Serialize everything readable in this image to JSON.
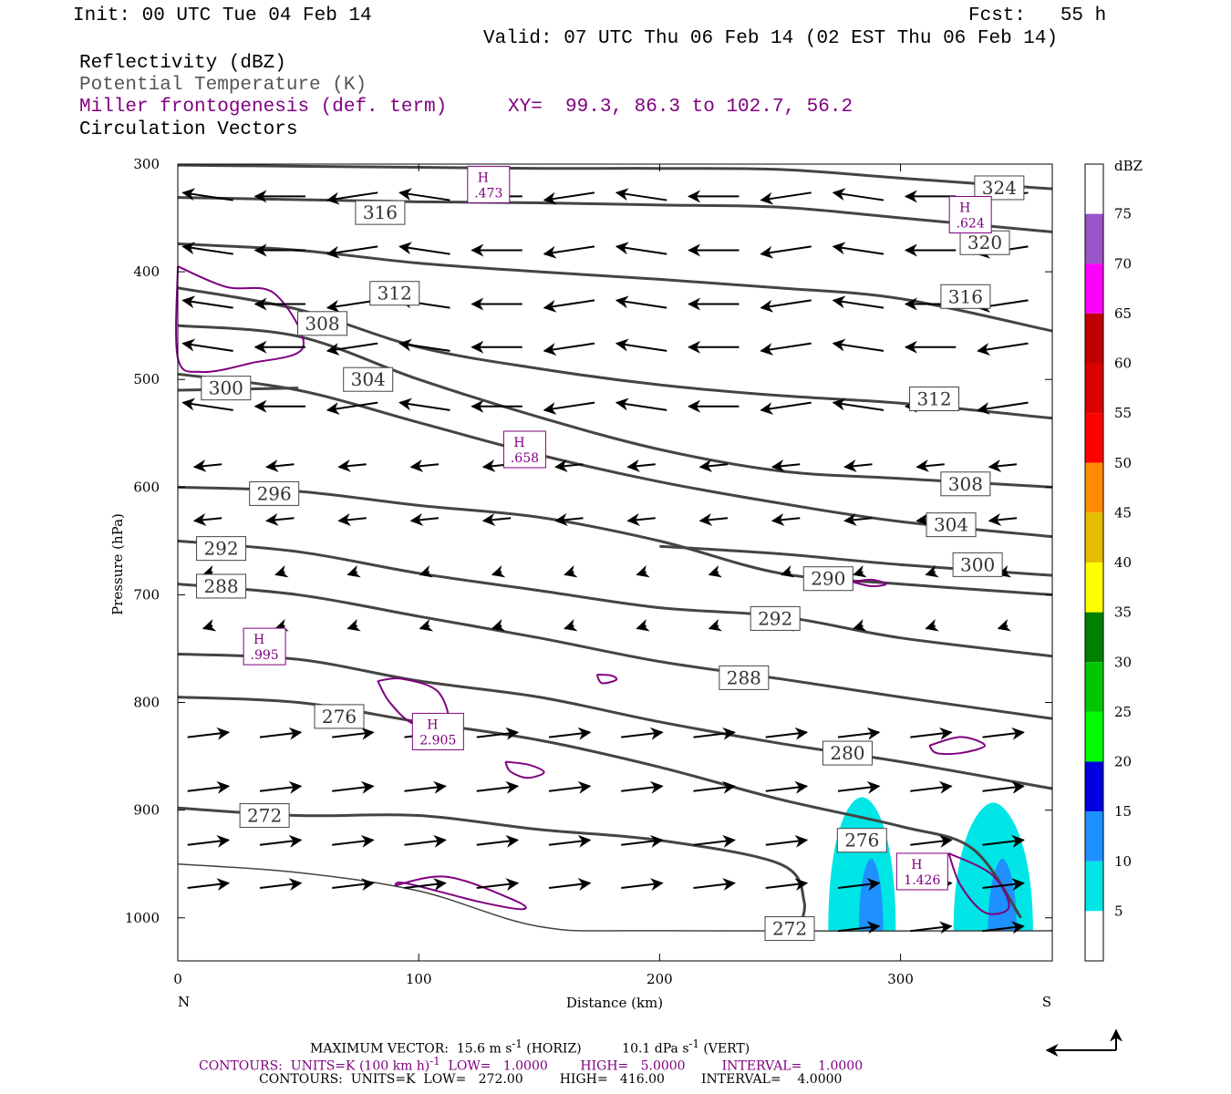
{
  "header": {
    "init": "Init: 00 UTC Tue 04 Feb 14",
    "fcst": "Fcst:   55 h",
    "valid": "Valid: 07 UTC Thu 06 Feb 14 (02 EST Thu 06 Feb 14)",
    "field1": "Reflectivity (dBZ)",
    "field2": "Potential Temperature (K)",
    "field3": "Miller frontogenesis (def. term)",
    "xy": "XY=  99.3, 86.3 to 102.7, 56.2",
    "field4": "Circulation Vectors"
  },
  "footer": {
    "line1a": "MAXIMUM VECTOR:  15.6 m s",
    "line1a_sup": "-1",
    "line1b": "(HORIZ)",
    "line1c": "10.1 dPa s",
    "line1c_sup": "-1",
    "line1d": "(VERT)",
    "line2a": "CONTOURS:  UNITS=K (100 km h)",
    "line2a_sup": "-1",
    "line2b": "LOW=   1.0000",
    "line2c": "HIGH=   5.0000",
    "line2d": "INTERVAL=    1.0000",
    "line3a": "CONTOURS:  UNITS=K  LOW=   272.00",
    "line3b": "HIGH=   416.00",
    "line3c": "INTERVAL=    4.0000"
  },
  "colors": {
    "theta": "#444444",
    "frontogenesis": "#800080",
    "vector": "#000000"
  },
  "chart_data": {
    "type": "cross-section",
    "xlabel": "Distance (km)",
    "ylabel": "Pressure (hPa)",
    "xlim": [
      0,
      363
    ],
    "ylim": [
      1040,
      300
    ],
    "x_ticks": [
      0,
      100,
      200,
      300
    ],
    "y_ticks": [
      300,
      400,
      500,
      600,
      700,
      800,
      900,
      1000
    ],
    "x_end_labels": {
      "left": "N",
      "right": "S"
    },
    "colorbar": {
      "title": "dBZ",
      "levels": [
        75,
        70,
        65,
        60,
        55,
        50,
        45,
        40,
        35,
        30,
        25,
        20,
        15,
        10,
        5
      ],
      "colors": [
        "#ffffff",
        "#9b55c8",
        "#ff00ff",
        "#c00000",
        "#dc0000",
        "#ff0000",
        "#ff8c00",
        "#e6be00",
        "#ffff00",
        "#008000",
        "#00c800",
        "#00ff00",
        "#0000e0",
        "#1e90ff",
        "#00e5e5",
        "#ffffff"
      ]
    },
    "theta_contours": [
      {
        "label": "324",
        "points": [
          [
            0,
            301
          ],
          [
            50,
            302
          ],
          [
            100,
            303
          ],
          [
            150,
            304
          ],
          [
            200,
            304
          ],
          [
            250,
            305
          ],
          [
            300,
            313
          ],
          [
            363,
            323
          ]
        ],
        "label_pos": [
          341,
          322
        ]
      },
      {
        "label": "320",
        "points": [
          [
            0,
            331
          ],
          [
            50,
            333
          ],
          [
            100,
            335
          ],
          [
            150,
            336
          ],
          [
            200,
            338
          ],
          [
            250,
            340
          ],
          [
            300,
            350
          ],
          [
            363,
            363
          ]
        ],
        "label_pos": [
          335,
          373
        ]
      },
      {
        "label": "316",
        "points": [
          [
            0,
            374
          ],
          [
            50,
            380
          ],
          [
            100,
            392
          ],
          [
            150,
            400
          ],
          [
            200,
            407
          ],
          [
            250,
            415
          ],
          [
            300,
            425
          ],
          [
            363,
            455
          ]
        ],
        "label_pos": [
          84,
          345
        ]
      },
      {
        "label": "316",
        "points": [],
        "label_pos": [
          327,
          423
        ]
      },
      {
        "label": "312",
        "points": [
          [
            0,
            415
          ],
          [
            50,
            435
          ],
          [
            100,
            470
          ],
          [
            150,
            490
          ],
          [
            200,
            505
          ],
          [
            250,
            515
          ],
          [
            300,
            522
          ],
          [
            363,
            536
          ]
        ],
        "label_pos": [
          90,
          420
        ]
      },
      {
        "label": "312",
        "points": [],
        "label_pos": [
          314,
          518
        ]
      },
      {
        "label": "308",
        "points": [
          [
            0,
            450
          ],
          [
            50,
            460
          ],
          [
            100,
            500
          ],
          [
            150,
            535
          ],
          [
            200,
            565
          ],
          [
            250,
            585
          ],
          [
            300,
            592
          ],
          [
            363,
            600
          ]
        ],
        "label_pos": [
          60,
          448
        ]
      },
      {
        "label": "308",
        "points": [],
        "label_pos": [
          327,
          597
        ]
      },
      {
        "label": "304",
        "points": [
          [
            0,
            495
          ],
          [
            50,
            510
          ],
          [
            100,
            540
          ],
          [
            150,
            570
          ],
          [
            200,
            595
          ],
          [
            250,
            615
          ],
          [
            300,
            632
          ],
          [
            363,
            646
          ]
        ],
        "label_pos": [
          79,
          500
        ]
      },
      {
        "label": "304",
        "points": [],
        "label_pos": [
          321,
          635
        ]
      },
      {
        "label": "300",
        "points": [
          [
            0,
            510
          ],
          [
            50,
            508
          ]
        ],
        "label_pos": [
          20,
          508
        ]
      },
      {
        "label": "300",
        "points": [
          [
            200,
            655
          ],
          [
            250,
            662
          ],
          [
            300,
            672
          ],
          [
            363,
            682
          ]
        ],
        "label_pos": [
          332,
          672
        ]
      },
      {
        "label": "296",
        "points": [
          [
            0,
            600
          ],
          [
            50,
            604
          ],
          [
            100,
            617
          ],
          [
            150,
            628
          ],
          [
            200,
            650
          ],
          [
            250,
            680
          ],
          [
            300,
            690
          ],
          [
            363,
            700
          ]
        ],
        "label_pos": [
          40,
          606
        ]
      },
      {
        "label": "292",
        "points": [
          [
            0,
            650
          ],
          [
            50,
            660
          ],
          [
            100,
            680
          ],
          [
            150,
            696
          ],
          [
            200,
            712
          ],
          [
            250,
            720
          ],
          [
            300,
            740
          ],
          [
            363,
            757
          ]
        ],
        "label_pos": [
          18,
          657
        ]
      },
      {
        "label": "292",
        "points": [],
        "label_pos": [
          248,
          722
        ]
      },
      {
        "label": "290",
        "points": [],
        "label_pos": [
          270,
          685
        ]
      },
      {
        "label": "288",
        "points": [
          [
            0,
            690
          ],
          [
            50,
            700
          ],
          [
            100,
            720
          ],
          [
            150,
            740
          ],
          [
            200,
            762
          ],
          [
            250,
            778
          ],
          [
            300,
            795
          ],
          [
            363,
            815
          ]
        ],
        "label_pos": [
          18,
          692
        ]
      },
      {
        "label": "288",
        "points": [],
        "label_pos": [
          235,
          777
        ]
      },
      {
        "label": "280",
        "points": [
          [
            0,
            755
          ],
          [
            50,
            760
          ],
          [
            100,
            780
          ],
          [
            150,
            795
          ],
          [
            200,
            818
          ],
          [
            250,
            838
          ],
          [
            300,
            855
          ],
          [
            363,
            880
          ]
        ],
        "label_pos": [
          278,
          847
        ]
      },
      {
        "label": "276",
        "points": [
          [
            0,
            795
          ],
          [
            50,
            800
          ],
          [
            100,
            818
          ],
          [
            150,
            835
          ],
          [
            200,
            860
          ],
          [
            250,
            890
          ],
          [
            300,
            915
          ],
          [
            330,
            936
          ],
          [
            350,
            1000
          ]
        ],
        "label_pos": [
          67,
          813
        ]
      },
      {
        "label": "276",
        "points": [],
        "label_pos": [
          284,
          928
        ]
      },
      {
        "label": "272",
        "points": [
          [
            0,
            898
          ],
          [
            50,
            905
          ],
          [
            100,
            905
          ],
          [
            150,
            918
          ],
          [
            200,
            928
          ],
          [
            250,
            950
          ],
          [
            260,
            985
          ],
          [
            257,
            1013
          ]
        ],
        "label_pos": [
          36,
          905
        ]
      },
      {
        "label": "272",
        "points": [
          [
            0,
            950
          ],
          [
            50,
            958
          ],
          [
            100,
            975
          ],
          [
            150,
            1008
          ],
          [
            200,
            1012
          ],
          [
            363,
            1012
          ]
        ],
        "label_pos": [
          254,
          1010
        ]
      }
    ],
    "frontogenesis_highs": [
      {
        "label": "H",
        "value": ".473",
        "pos": [
          129,
          319
        ]
      },
      {
        "label": "H",
        "value": ".624",
        "pos": [
          329,
          347
        ]
      },
      {
        "label": "H",
        "value": ".658",
        "pos": [
          144,
          565
        ]
      },
      {
        "label": "H",
        "value": ".995",
        "pos": [
          36,
          748
        ]
      },
      {
        "label": "H",
        "value": "2.905",
        "pos": [
          108,
          827
        ]
      },
      {
        "label": "H",
        "value": "1.426",
        "pos": [
          309,
          957
        ]
      }
    ],
    "reflectivity_cells": [
      {
        "x_range": [
          270,
          298
        ],
        "top_p": 888,
        "max_dbz": 10
      },
      {
        "x_range": [
          322,
          355
        ],
        "top_p": 893,
        "max_dbz": 15
      }
    ],
    "max_vector": {
      "horiz_m_s": 15.6,
      "vert_dPa_s": 10.1
    }
  }
}
